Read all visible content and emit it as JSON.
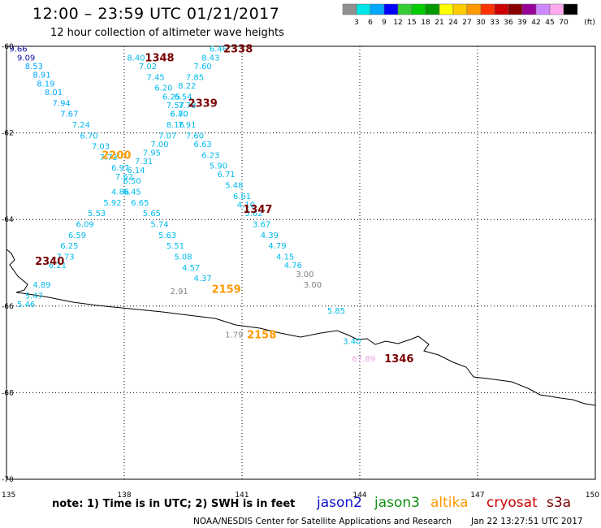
{
  "header": {
    "title": "12:00 – 23:59 UTC 01/21/2017",
    "subtitle": "12 hour collection of altimeter wave heights"
  },
  "footer": {
    "note": "note: 1) Time is in UTC; 2) SWH is in feet",
    "credit": "NOAA/NESDIS Center for Satellite Applications and Research",
    "timestamp": "Jan 22 13:27:51 UTC 2017"
  },
  "missions": [
    {
      "name": "jason2",
      "color": "#1010cc"
    },
    {
      "name": "jason3",
      "color": "#109010"
    },
    {
      "name": "altika",
      "color": "#ff9900"
    },
    {
      "name": "cryosat",
      "color": "#cc0000"
    },
    {
      "name": "s3a",
      "color": "#7a0000"
    }
  ],
  "chart_data": {
    "type": "scatter",
    "title": "12:00 – 23:59 UTC 01/21/2017",
    "subtitle": "12 hour collection of altimeter wave heights",
    "xlim": [
      135,
      150
    ],
    "ylim": [
      -70,
      -60
    ],
    "x_ticks": [
      "135",
      "138",
      "141",
      "144",
      "147",
      "150"
    ],
    "y_ticks": [
      "-60",
      "-62",
      "-64",
      "-66",
      "-68",
      "-70"
    ],
    "grid": true,
    "color_scale": {
      "unit": "(ft)",
      "labels": [
        "3",
        "6",
        "9",
        "12",
        "15",
        "18",
        "21",
        "24",
        "27",
        "30",
        "33",
        "36",
        "39",
        "42",
        "45",
        "70"
      ],
      "colors": [
        "#909090",
        "#00e5e5",
        "#00a8ff",
        "#0000ff",
        "#33cc33",
        "#00cc00",
        "#009900",
        "#ffff00",
        "#ffcc00",
        "#ff9900",
        "#ff3300",
        "#cc0000",
        "#880000",
        "#990099",
        "#cc88ff",
        "#ffaaee",
        "#000000"
      ]
    },
    "wave_heights": [
      {
        "value": "9.66",
        "lon": 135.3,
        "lat": -60.05,
        "color": "#1010a0"
      },
      {
        "value": "9.09",
        "lon": 135.5,
        "lat": -60.25,
        "color": "#1010a0"
      },
      {
        "value": "8.53",
        "lon": 135.7,
        "lat": -60.45,
        "color": "#00a8ff"
      },
      {
        "value": "8.91",
        "lon": 135.9,
        "lat": -60.65,
        "color": "#00a8ff"
      },
      {
        "value": "8.19",
        "lon": 136.0,
        "lat": -60.85,
        "color": "#00a8ff"
      },
      {
        "value": "8.01",
        "lon": 136.2,
        "lat": -61.05,
        "color": "#00a8ff"
      },
      {
        "value": "7.94",
        "lon": 136.4,
        "lat": -61.3,
        "color": "#00a8ff"
      },
      {
        "value": "7.67",
        "lon": 136.6,
        "lat": -61.55,
        "color": "#00a8ff"
      },
      {
        "value": "7.24",
        "lon": 136.9,
        "lat": -61.8,
        "color": "#00bbee"
      },
      {
        "value": "6.70",
        "lon": 137.1,
        "lat": -62.05,
        "color": "#00bbee"
      },
      {
        "value": "7.03",
        "lon": 137.4,
        "lat": -62.3,
        "color": "#00bbee"
      },
      {
        "value": "7.73",
        "lon": 137.6,
        "lat": -62.55,
        "color": "#00bbee"
      },
      {
        "value": "6.97",
        "lon": 137.9,
        "lat": -62.8,
        "color": "#00bbee"
      },
      {
        "value": "7.62",
        "lon": 138.0,
        "lat": -63.0,
        "color": "#00bbee"
      },
      {
        "value": "4.86",
        "lon": 137.9,
        "lat": -63.35,
        "color": "#00bbee"
      },
      {
        "value": "5.92",
        "lon": 137.7,
        "lat": -63.6,
        "color": "#00bbee"
      },
      {
        "value": "5.53",
        "lon": 137.3,
        "lat": -63.85,
        "color": "#00bbee"
      },
      {
        "value": "6.09",
        "lon": 137.0,
        "lat": -64.1,
        "color": "#00bbee"
      },
      {
        "value": "6.59",
        "lon": 136.8,
        "lat": -64.35,
        "color": "#00bbee"
      },
      {
        "value": "6.25",
        "lon": 136.6,
        "lat": -64.6,
        "color": "#00bbee"
      },
      {
        "value": "7.73",
        "lon": 136.5,
        "lat": -64.85,
        "color": "#00bbee"
      },
      {
        "value": "6.21",
        "lon": 136.3,
        "lat": -65.05,
        "color": "#00bbee"
      },
      {
        "value": "4.89",
        "lon": 135.9,
        "lat": -65.5,
        "color": "#00bbee"
      },
      {
        "value": "5.47",
        "lon": 135.7,
        "lat": -65.75,
        "color": "#00bbee"
      },
      {
        "value": "5.46",
        "lon": 135.5,
        "lat": -65.95,
        "color": "#00bbee"
      },
      {
        "value": "8.40",
        "lon": 138.3,
        "lat": -60.25,
        "color": "#00bbee"
      },
      {
        "value": "7.02",
        "lon": 138.6,
        "lat": -60.45,
        "color": "#00bbee"
      },
      {
        "value": "7.45",
        "lon": 138.8,
        "lat": -60.7,
        "color": "#00bbee"
      },
      {
        "value": "6.20",
        "lon": 139.0,
        "lat": -60.95,
        "color": "#00bbee"
      },
      {
        "value": "6.25",
        "lon": 139.2,
        "lat": -61.15,
        "color": "#00bbee"
      },
      {
        "value": "7.57",
        "lon": 139.3,
        "lat": -61.35,
        "color": "#00bbee"
      },
      {
        "value": "6.80",
        "lon": 139.4,
        "lat": -61.55,
        "color": "#00bbee"
      },
      {
        "value": "8.16",
        "lon": 139.3,
        "lat": -61.8,
        "color": "#00bbee"
      },
      {
        "value": "7.07",
        "lon": 139.1,
        "lat": -62.05,
        "color": "#00bbee"
      },
      {
        "value": "7.00",
        "lon": 138.9,
        "lat": -62.25,
        "color": "#00bbee"
      },
      {
        "value": "7.95",
        "lon": 138.7,
        "lat": -62.45,
        "color": "#00bbee"
      },
      {
        "value": "7.31",
        "lon": 138.5,
        "lat": -62.65,
        "color": "#00bbee"
      },
      {
        "value": "6.14",
        "lon": 138.3,
        "lat": -62.85,
        "color": "#00bbee"
      },
      {
        "value": "6.50",
        "lon": 138.2,
        "lat": -63.1,
        "color": "#00bbee"
      },
      {
        "value": "6.45",
        "lon": 138.2,
        "lat": -63.35,
        "color": "#00bbee"
      },
      {
        "value": "6.65",
        "lon": 138.4,
        "lat": -63.6,
        "color": "#00bbee"
      },
      {
        "value": "5.65",
        "lon": 138.7,
        "lat": -63.85,
        "color": "#00bbee"
      },
      {
        "value": "5.74",
        "lon": 138.9,
        "lat": -64.1,
        "color": "#00bbee"
      },
      {
        "value": "5.63",
        "lon": 139.1,
        "lat": -64.35,
        "color": "#00bbee"
      },
      {
        "value": "5.51",
        "lon": 139.3,
        "lat": -64.6,
        "color": "#00bbee"
      },
      {
        "value": "5.08",
        "lon": 139.5,
        "lat": -64.85,
        "color": "#00bbee"
      },
      {
        "value": "4.57",
        "lon": 139.7,
        "lat": -65.1,
        "color": "#00bbee"
      },
      {
        "value": "4.37",
        "lon": 140.0,
        "lat": -65.35,
        "color": "#00bbee"
      },
      {
        "value": "6.46",
        "lon": 140.4,
        "lat": -60.05,
        "color": "#00bbee"
      },
      {
        "value": "8.43",
        "lon": 140.2,
        "lat": -60.25,
        "color": "#00bbee"
      },
      {
        "value": "7.60",
        "lon": 140.0,
        "lat": -60.45,
        "color": "#00bbee"
      },
      {
        "value": "7.85",
        "lon": 139.8,
        "lat": -60.7,
        "color": "#00bbee"
      },
      {
        "value": "8.22",
        "lon": 139.6,
        "lat": -60.9,
        "color": "#00bbee"
      },
      {
        "value": "6.54",
        "lon": 139.5,
        "lat": -61.15,
        "color": "#00bbee"
      },
      {
        "value": "7.78",
        "lon": 139.6,
        "lat": -61.35,
        "color": "#00bbee"
      },
      {
        "value": "6.70",
        "lon": 139.4,
        "lat": -61.55,
        "color": "#00bbee"
      },
      {
        "value": "7.91",
        "lon": 139.6,
        "lat": -61.8,
        "color": "#00bbee"
      },
      {
        "value": "7.60",
        "lon": 139.8,
        "lat": -62.05,
        "color": "#00bbee"
      },
      {
        "value": "6.63",
        "lon": 140.0,
        "lat": -62.25,
        "color": "#00bbee"
      },
      {
        "value": "6.23",
        "lon": 140.2,
        "lat": -62.5,
        "color": "#00bbee"
      },
      {
        "value": "5.90",
        "lon": 140.4,
        "lat": -62.75,
        "color": "#00bbee"
      },
      {
        "value": "6.71",
        "lon": 140.6,
        "lat": -62.95,
        "color": "#00bbee"
      },
      {
        "value": "5.48",
        "lon": 140.8,
        "lat": -63.2,
        "color": "#00bbee"
      },
      {
        "value": "6.61",
        "lon": 141.0,
        "lat": -63.45,
        "color": "#00bbee"
      },
      {
        "value": "4.10",
        "lon": 141.1,
        "lat": -63.65,
        "color": "#00bbee"
      },
      {
        "value": "5.62",
        "lon": 141.3,
        "lat": -63.85,
        "color": "#00bbee"
      },
      {
        "value": "3.67",
        "lon": 141.5,
        "lat": -64.1,
        "color": "#00bbee"
      },
      {
        "value": "4.39",
        "lon": 141.7,
        "lat": -64.35,
        "color": "#00bbee"
      },
      {
        "value": "4.79",
        "lon": 141.9,
        "lat": -64.6,
        "color": "#00bbee"
      },
      {
        "value": "4.15",
        "lon": 142.1,
        "lat": -64.85,
        "color": "#00bbee"
      },
      {
        "value": "4.76",
        "lon": 142.3,
        "lat": -65.05,
        "color": "#00bbee"
      },
      {
        "value": "3.00",
        "lon": 142.6,
        "lat": -65.25,
        "color": "#808080"
      },
      {
        "value": "3.00",
        "lon": 142.8,
        "lat": -65.5,
        "color": "#808080"
      },
      {
        "value": "2.91",
        "lon": 139.4,
        "lat": -65.65,
        "color": "#808080"
      },
      {
        "value": "5.85",
        "lon": 143.4,
        "lat": -66.1,
        "color": "#00bbee"
      },
      {
        "value": "1.79",
        "lon": 140.8,
        "lat": -66.65,
        "color": "#808080"
      },
      {
        "value": "3.40",
        "lon": 143.8,
        "lat": -66.8,
        "color": "#00bbee"
      },
      {
        "value": "67.89",
        "lon": 144.1,
        "lat": -67.2,
        "color": "#e8a0e0"
      }
    ],
    "time_labels": [
      {
        "value": "2338",
        "lon": 140.9,
        "lat": -60.05,
        "color": "#7a0000"
      },
      {
        "value": "1348",
        "lon": 138.9,
        "lat": -60.25,
        "color": "#7a0000"
      },
      {
        "value": "2339",
        "lon": 140.0,
        "lat": -61.3,
        "color": "#7a0000"
      },
      {
        "value": "2200",
        "lon": 137.8,
        "lat": -62.5,
        "color": "#ff9900"
      },
      {
        "value": "1347",
        "lon": 141.4,
        "lat": -63.75,
        "color": "#7a0000"
      },
      {
        "value": "2340",
        "lon": 136.1,
        "lat": -64.95,
        "color": "#7a0000"
      },
      {
        "value": "2159",
        "lon": 140.6,
        "lat": -65.6,
        "color": "#ff9900"
      },
      {
        "value": "2158",
        "lon": 141.5,
        "lat": -66.65,
        "color": "#ff9900"
      },
      {
        "value": "1346",
        "lon": 145.0,
        "lat": -67.2,
        "color": "#7a0000"
      }
    ]
  }
}
